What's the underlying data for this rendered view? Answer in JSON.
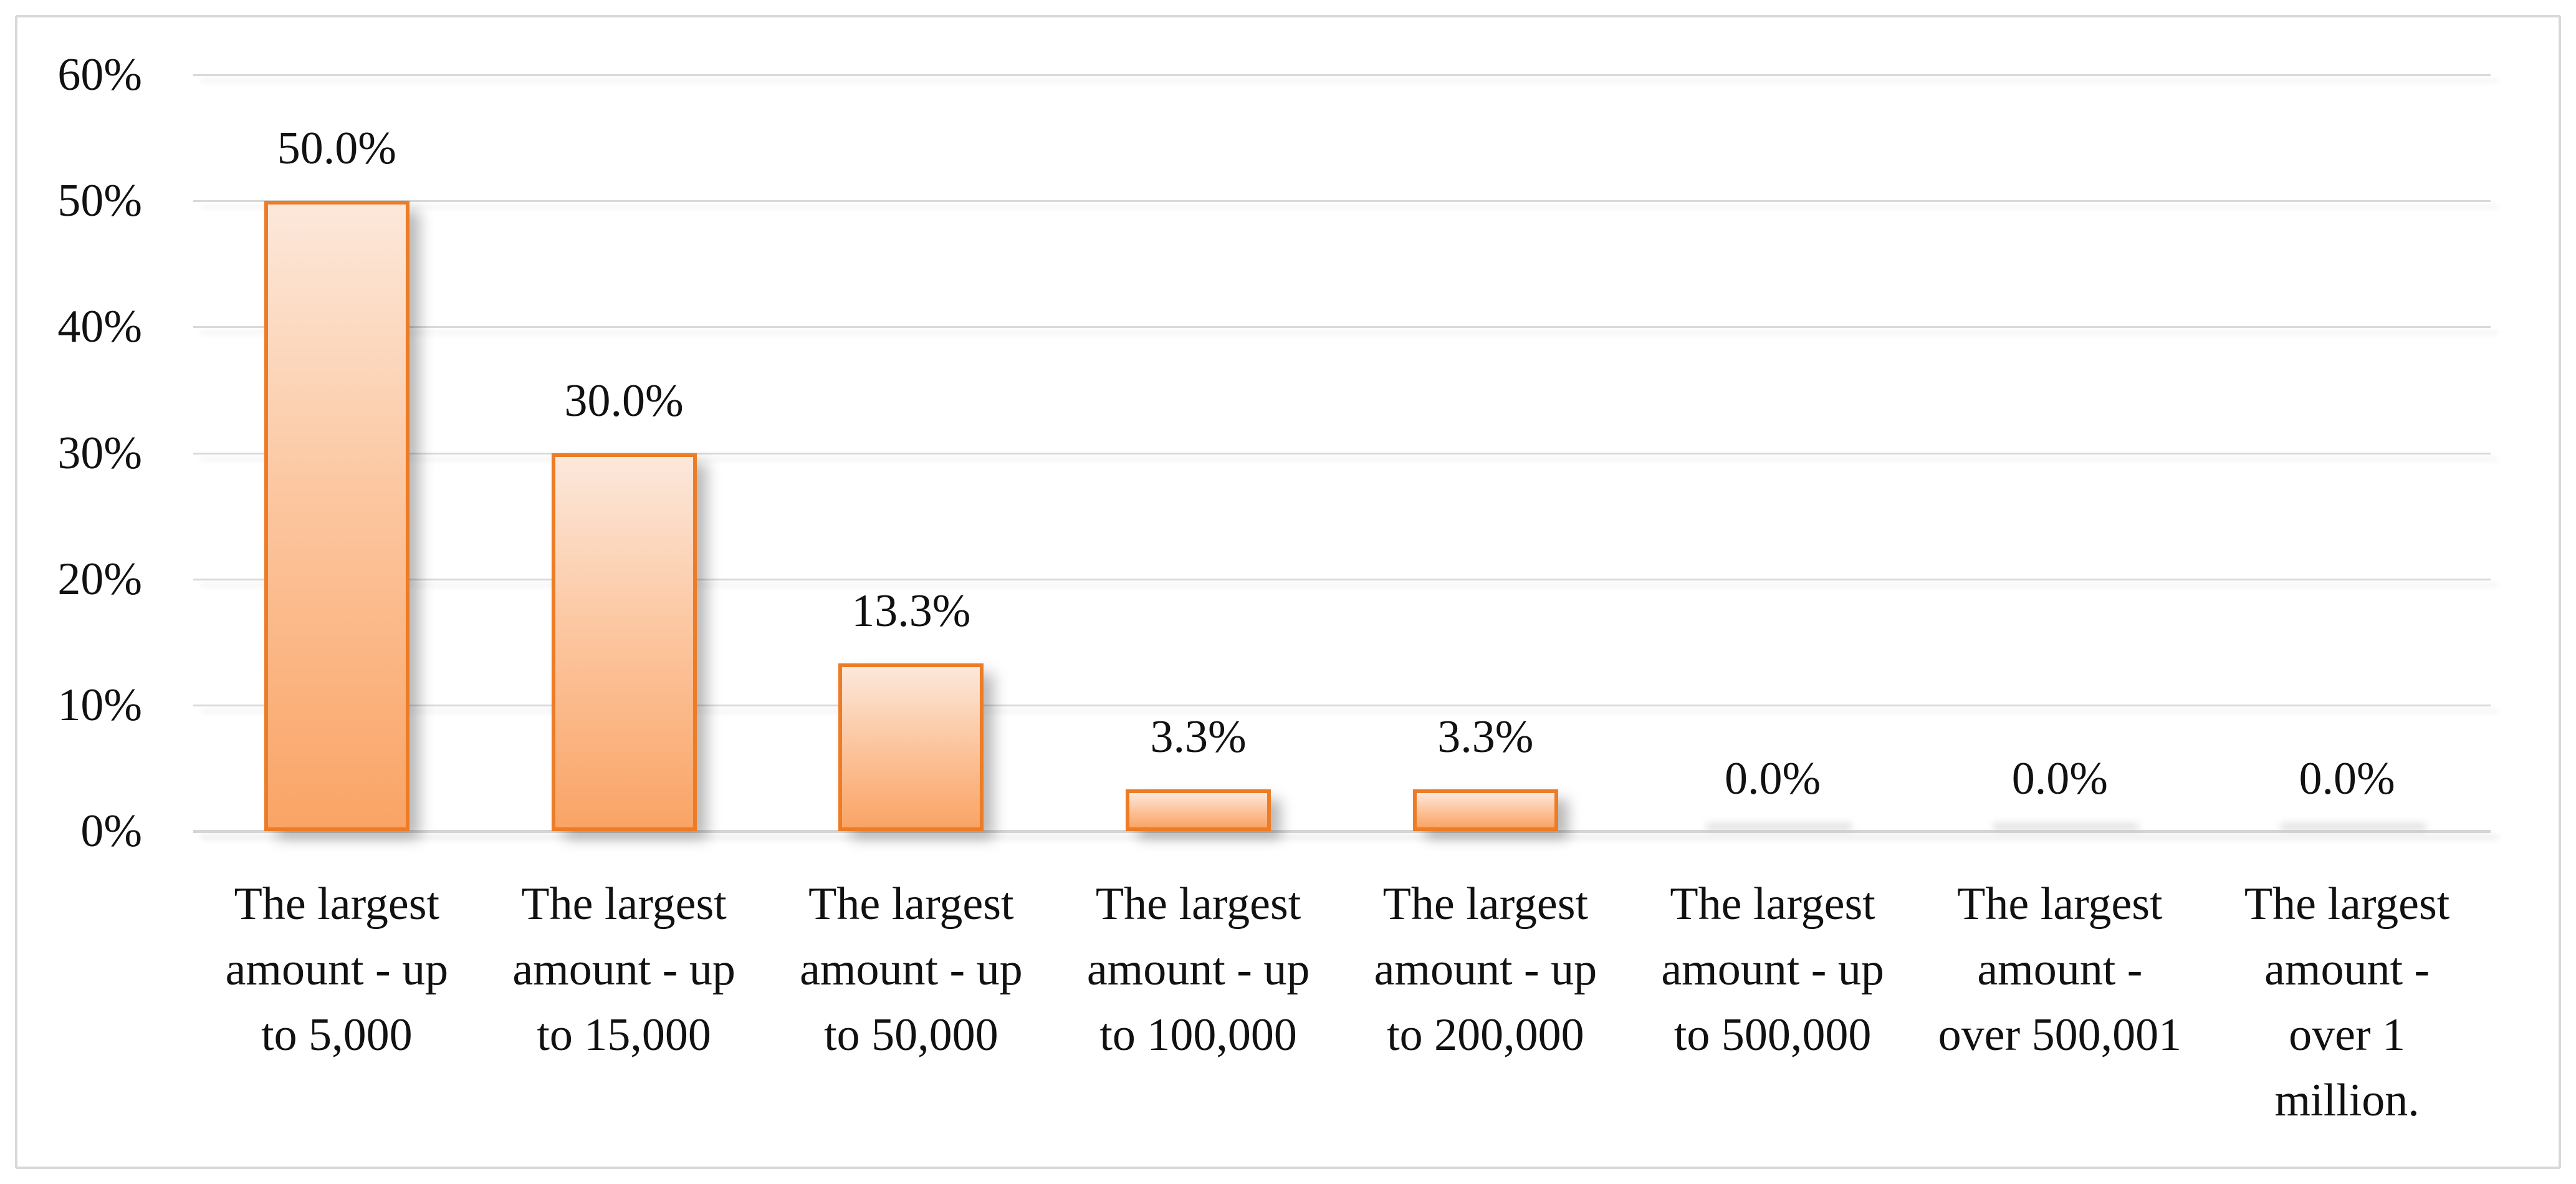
{
  "chart_data": {
    "type": "bar",
    "title": "",
    "xlabel": "",
    "ylabel": "",
    "ylim": [
      0,
      60
    ],
    "y_tick_step": 10,
    "grid": true,
    "legend": "none",
    "y_ticks": [
      "60%",
      "50%",
      "40%",
      "30%",
      "20%",
      "10%",
      "0%"
    ],
    "categories": [
      "The largest amount - up to 5,000",
      "The largest amount - up to 15,000",
      "The largest amount - up to 50,000",
      "The largest amount - up to 100,000",
      "The largest amount - up to 200,000",
      "The largest amount - up to 500,000",
      "The largest amount - over 500,001",
      "The largest amount - over 1 million."
    ],
    "category_lines": [
      [
        "The largest",
        "amount - up",
        "to 5,000"
      ],
      [
        "The largest",
        "amount - up",
        "to 15,000"
      ],
      [
        "The largest",
        "amount - up",
        "to 50,000"
      ],
      [
        "The largest",
        "amount - up",
        "to 100,000"
      ],
      [
        "The largest",
        "amount - up",
        "to 200,000"
      ],
      [
        "The largest",
        "amount - up",
        "to 500,000"
      ],
      [
        "The largest",
        "amount -",
        "over 500,001"
      ],
      [
        "The largest",
        "amount -",
        "over 1",
        "million."
      ]
    ],
    "values": [
      50.0,
      30.0,
      13.3,
      3.3,
      3.3,
      0.0,
      0.0,
      0.0
    ],
    "data_labels": [
      "50.0%",
      "30.0%",
      "13.3%",
      "3.3%",
      "3.3%",
      "0.0%",
      "0.0%",
      "0.0%"
    ],
    "colors": {
      "bar_border": "#ED7C26",
      "bar_fill_top": "#FCE8DB",
      "bar_fill_bottom": "#FAA466",
      "gridline": "#D9D9D9",
      "axis_line": "#D5D5D5",
      "frame_border": "#D9D9D9",
      "text": "#111111",
      "background": "#FFFFFF"
    }
  }
}
